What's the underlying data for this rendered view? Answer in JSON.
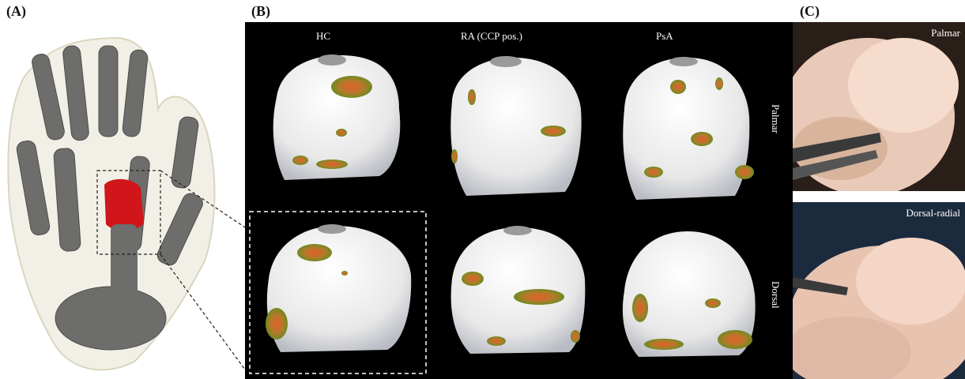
{
  "labels": {
    "a": "(A)",
    "b": "(B)",
    "c": "(C)"
  },
  "panel_b": {
    "columns": [
      "HC",
      "RA (CCP pos.)",
      "PsA"
    ],
    "rows": [
      "Palmar",
      "Dorsal"
    ]
  },
  "panel_c": {
    "top_label": "Palmar",
    "bottom_label": "Dorsal-radial"
  },
  "colors": {
    "bone": "#6d6d6b",
    "skin": "#eceadb",
    "highlight_bone": "#d0161b",
    "surface": "#f1f1f1",
    "lesion_outer": "#6f8a22",
    "lesion_inner": "#e0602a",
    "background_b": "#000000"
  }
}
